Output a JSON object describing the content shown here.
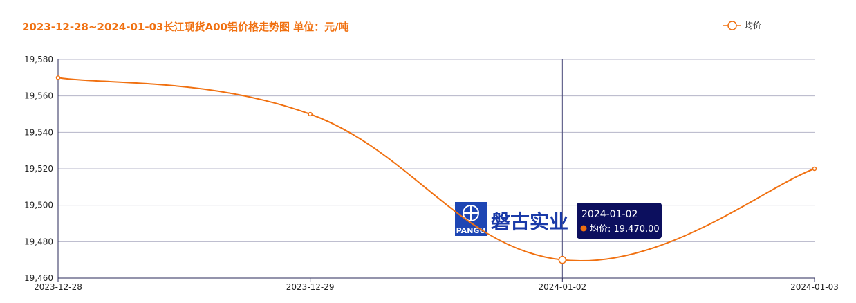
{
  "chart_data": {
    "type": "line",
    "title": "2023-12-28~2024-01-03长江现货A00铝价格走势图 单位：元/吨",
    "categories": [
      "2023-12-28",
      "2023-12-29",
      "2024-01-02",
      "2024-01-03"
    ],
    "series": [
      {
        "name": "均价",
        "values": [
          19570,
          19550,
          19470,
          19520
        ]
      }
    ],
    "y_ticks": [
      "19,460",
      "19,480",
      "19,500",
      "19,520",
      "19,540",
      "19,560",
      "19,580"
    ],
    "ylim": [
      19460,
      19580
    ],
    "y_step": 20,
    "xlabel": "",
    "ylabel": "",
    "grid": true,
    "legend_position": "top-right",
    "colors": {
      "title": "#f07010",
      "line": "#f07010",
      "grid": "#b4b4c8",
      "axis": "#2a2a5a"
    },
    "tooltip": {
      "category": "2024-01-02",
      "label": "均价: 19,470.00"
    }
  },
  "watermark": {
    "logo_text": "PANGU",
    "company_text": "磐古实业",
    "icon": "pangu-logo-icon"
  }
}
